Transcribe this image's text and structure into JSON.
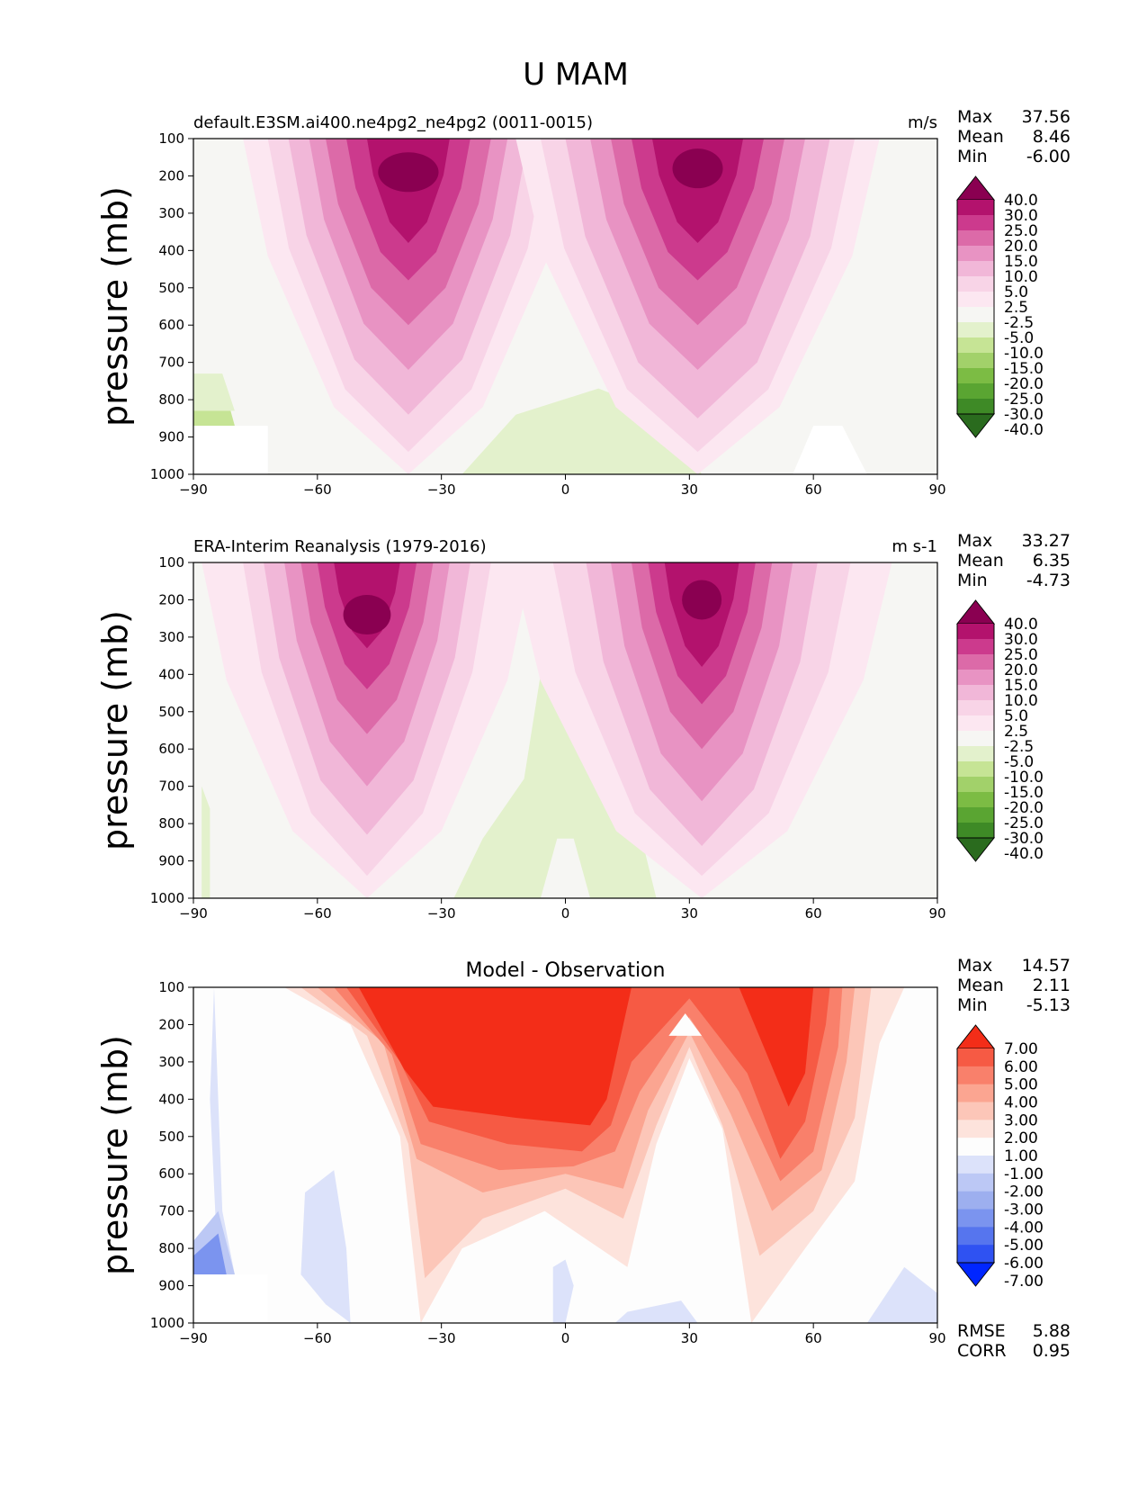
{
  "figure": {
    "title": "U MAM"
  },
  "colors": {
    "sequential": [
      "#2a6b1e",
      "#3e8a26",
      "#5aa532",
      "#7cbc44",
      "#a2d16a",
      "#c6e495",
      "#e3f1cc",
      "#f6f6f3",
      "#fce7f1",
      "#f8d4e7",
      "#f1b7d8",
      "#e893c3",
      "#dc6aa8",
      "#cc3a8d",
      "#b3126d",
      "#8a0051"
    ],
    "diff": [
      "#0026ff",
      "#2f52f2",
      "#5675ee",
      "#7b94ef",
      "#9dafef",
      "#bcc8f5",
      "#dce2fa",
      "#fdfdfd",
      "#fde3dc",
      "#fcc6b8",
      "#fba591",
      "#f9806b",
      "#f65a44",
      "#f32d18"
    ]
  },
  "chart_data": [
    {
      "type": "contour",
      "title": "default.E3SM.ai400.ne4pg2_ne4pg2 (0011-0015)",
      "units": "m/s",
      "xlabel": "",
      "ylabel": "pressure (mb)",
      "x_ticks": [
        "−90",
        "−60",
        "−30",
        "0",
        "30",
        "60",
        "90"
      ],
      "y_ticks": [
        "100",
        "200",
        "300",
        "400",
        "500",
        "600",
        "700",
        "800",
        "900",
        "1000"
      ],
      "xlim": [
        -90,
        90
      ],
      "ylim": [
        1000,
        100
      ],
      "stats": [
        {
          "label": "Max",
          "value": "37.56"
        },
        {
          "label": "Mean",
          "value": "8.46"
        },
        {
          "label": "Min",
          "value": "-6.00"
        }
      ],
      "colorbar": {
        "levels": [
          "40.0",
          "30.0",
          "25.0",
          "20.0",
          "15.0",
          "10.0",
          "5.0",
          "2.5",
          "-2.5",
          "-5.0",
          "-10.0",
          "-15.0",
          "-20.0",
          "-25.0",
          "-30.0",
          "-40.0"
        ]
      }
    },
    {
      "type": "contour",
      "title": "ERA-Interim Reanalysis (1979-2016)",
      "units": "m s-1",
      "xlabel": "",
      "ylabel": "pressure (mb)",
      "x_ticks": [
        "−90",
        "−60",
        "−30",
        "0",
        "30",
        "60",
        "90"
      ],
      "y_ticks": [
        "100",
        "200",
        "300",
        "400",
        "500",
        "600",
        "700",
        "800",
        "900",
        "1000"
      ],
      "xlim": [
        -90,
        90
      ],
      "ylim": [
        1000,
        100
      ],
      "stats": [
        {
          "label": "Max",
          "value": "33.27"
        },
        {
          "label": "Mean",
          "value": "6.35"
        },
        {
          "label": "Min",
          "value": "-4.73"
        }
      ],
      "colorbar": {
        "levels": [
          "40.0",
          "30.0",
          "25.0",
          "20.0",
          "15.0",
          "10.0",
          "5.0",
          "2.5",
          "-2.5",
          "-5.0",
          "-10.0",
          "-15.0",
          "-20.0",
          "-25.0",
          "-30.0",
          "-40.0"
        ]
      }
    },
    {
      "type": "contour",
      "title": "Model - Observation",
      "units": "",
      "xlabel": "",
      "ylabel": "pressure (mb)",
      "x_ticks": [
        "−90",
        "−60",
        "−30",
        "0",
        "30",
        "60",
        "90"
      ],
      "y_ticks": [
        "100",
        "200",
        "300",
        "400",
        "500",
        "600",
        "700",
        "800",
        "900",
        "1000"
      ],
      "xlim": [
        -90,
        90
      ],
      "ylim": [
        1000,
        100
      ],
      "stats": [
        {
          "label": "Max",
          "value": "14.57"
        },
        {
          "label": "Mean",
          "value": "2.11"
        },
        {
          "label": "Min",
          "value": "-5.13"
        }
      ],
      "extra_stats": [
        {
          "label": "RMSE",
          "value": "5.88"
        },
        {
          "label": "CORR",
          "value": "0.95"
        }
      ],
      "colorbar": {
        "levels": [
          "7.00",
          "6.00",
          "5.00",
          "4.00",
          "3.00",
          "2.00",
          "1.00",
          "-1.00",
          "-2.00",
          "-3.00",
          "-4.00",
          "-5.00",
          "-6.00",
          "-7.00"
        ]
      }
    }
  ]
}
